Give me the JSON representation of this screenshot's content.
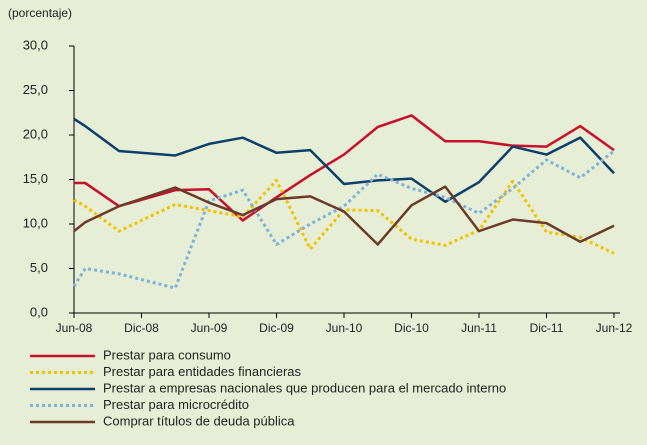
{
  "chart_data": {
    "type": "line",
    "y_label": "(porcentaje)",
    "x": [
      0,
      1,
      4,
      9,
      12,
      15,
      18,
      21,
      24,
      27,
      30,
      33,
      36,
      39,
      42,
      45,
      48
    ],
    "xlim": [
      0,
      48
    ],
    "xticks": [
      {
        "value": 0,
        "label": "Jun-08"
      },
      {
        "value": 6,
        "label": "Dic-08"
      },
      {
        "value": 12,
        "label": "Jun-09"
      },
      {
        "value": 18,
        "label": "Dic-09"
      },
      {
        "value": 24,
        "label": "Jun-10"
      },
      {
        "value": 30,
        "label": "Dic-10"
      },
      {
        "value": 36,
        "label": "Jun-11"
      },
      {
        "value": 42,
        "label": "Dic-11"
      },
      {
        "value": 48,
        "label": "Jun-12"
      }
    ],
    "ylim": [
      0,
      30
    ],
    "yticks": [
      {
        "value": 0,
        "label": "0,0"
      },
      {
        "value": 5,
        "label": "5,0"
      },
      {
        "value": 10,
        "label": "10,0"
      },
      {
        "value": 15,
        "label": "15,0"
      },
      {
        "value": 20,
        "label": "20,0"
      },
      {
        "value": 25,
        "label": "25,0"
      },
      {
        "value": 30,
        "label": "30,0"
      }
    ],
    "grid": false,
    "legend": "bottom",
    "series": [
      {
        "name": "Prestar para consumo",
        "color": "#c8102e",
        "dash": false,
        "values": [
          14.6,
          14.6,
          12.0,
          13.8,
          13.9,
          10.4,
          13.0,
          15.5,
          17.8,
          20.9,
          22.2,
          19.3,
          19.3,
          18.8,
          18.7,
          21.0,
          18.3
        ]
      },
      {
        "name": "Prestar para entidades financieras",
        "color": "#f2c200",
        "dash": true,
        "values": [
          12.7,
          12.0,
          9.2,
          12.2,
          11.5,
          10.8,
          14.9,
          7.2,
          11.6,
          11.5,
          8.3,
          7.6,
          9.3,
          14.8,
          9.1,
          8.5,
          6.7
        ]
      },
      {
        "name": "Prestar a empresas nacionales que producen para el mercado interno",
        "color": "#0d3f6b",
        "dash": false,
        "values": [
          21.8,
          21.0,
          18.2,
          17.7,
          19.0,
          19.7,
          18.0,
          18.3,
          14.5,
          14.9,
          15.1,
          12.5,
          14.7,
          18.7,
          17.8,
          19.7,
          15.7
        ]
      },
      {
        "name": "Prestar para microcrédito",
        "color": "#7fb2d9",
        "dash": true,
        "values": [
          3.0,
          5.0,
          4.4,
          2.8,
          12.6,
          13.8,
          7.7,
          10.0,
          12.0,
          15.6,
          14.0,
          13.0,
          11.2,
          14.0,
          17.2,
          15.2,
          18.2
        ]
      },
      {
        "name": "Comprar títulos de deuda pública",
        "color": "#6b3a2a",
        "dash": false,
        "values": [
          9.2,
          10.2,
          12.0,
          14.1,
          12.4,
          11.0,
          12.8,
          13.1,
          11.4,
          7.7,
          12.1,
          14.2,
          9.2,
          10.5,
          10.1,
          8.0,
          9.8
        ]
      }
    ]
  }
}
